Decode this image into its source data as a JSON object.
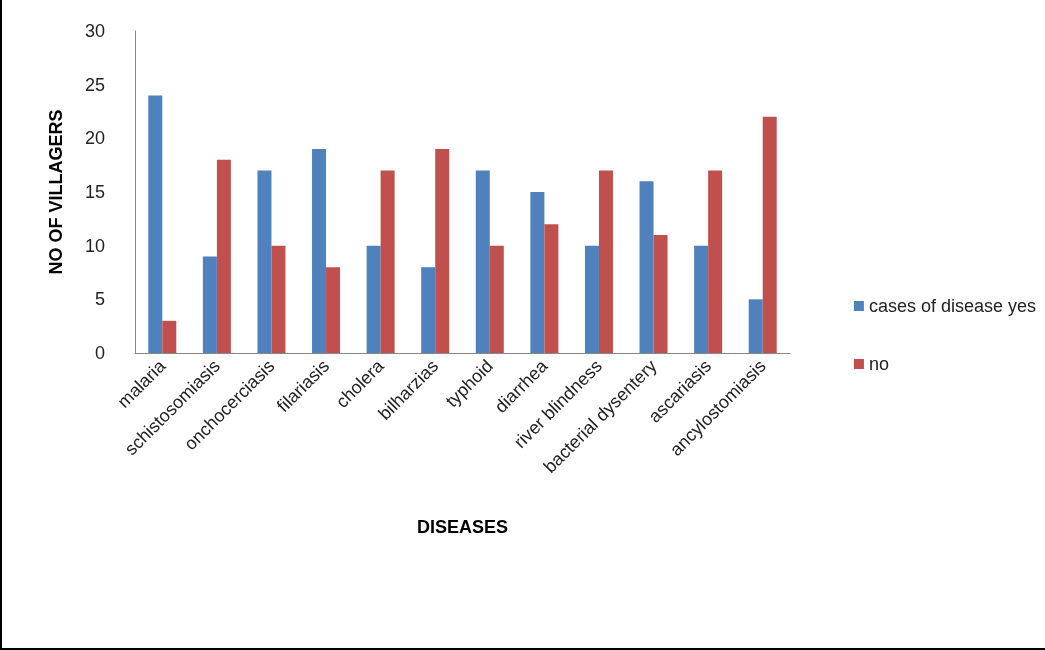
{
  "chart_data": {
    "type": "bar",
    "xlabel": "DISEASES",
    "ylabel": "NO OF VILLAGERS",
    "categories": [
      "malaria",
      "schistosomiasis",
      "onchocerciasis",
      "filariasis",
      "cholera",
      "bilharzias",
      "typhoid",
      "diarrhea",
      "river blindness",
      "bacterial dysentery",
      "ascariasis",
      "ancylostomiasis"
    ],
    "series": [
      {
        "name": "cases of disease yes",
        "color": "#4f81bd",
        "values": [
          24,
          9,
          17,
          19,
          10,
          8,
          17,
          15,
          10,
          16,
          10,
          5
        ]
      },
      {
        "name": "no",
        "color": "#c0504d",
        "values": [
          3,
          18,
          10,
          8,
          17,
          19,
          10,
          12,
          17,
          11,
          17,
          22
        ]
      }
    ],
    "ylim": [
      0,
      30
    ],
    "yticks": [
      0,
      5,
      10,
      15,
      20,
      25,
      30
    ],
    "grid": false,
    "legend": "right"
  }
}
